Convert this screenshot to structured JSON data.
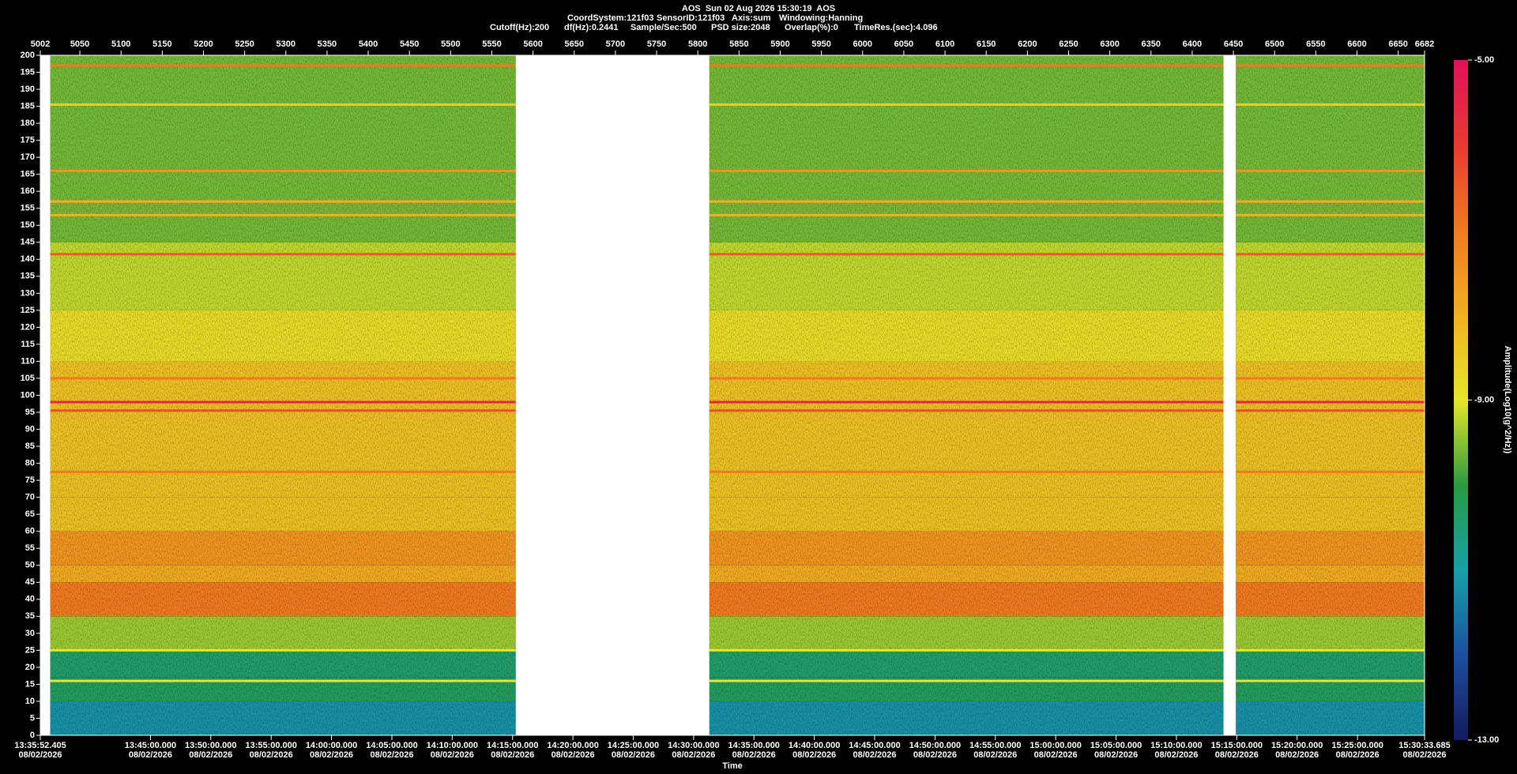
{
  "chart_data": {
    "type": "spectrogram",
    "title": "AOS  Sun 02 Aug 2026 15:30:19  AOS",
    "info_lines": [
      [
        "CoordSystem:121f03",
        "SensorID:121f03",
        "Axis:sum",
        "Windowing:Hanning"
      ],
      [
        "Cutoff(Hz):200",
        "df(Hz):0.2441",
        "Sample/Sec:500",
        "PSD size:2048",
        "Overlap(%):0",
        "TimeRes.(sec):4.096"
      ]
    ],
    "xlim": [
      5002,
      6682
    ],
    "xticks": [
      5002,
      5050,
      5100,
      5150,
      5200,
      5250,
      5300,
      5350,
      5400,
      5450,
      5500,
      5550,
      5600,
      5650,
      5700,
      5750,
      5800,
      5850,
      5900,
      5950,
      6000,
      6050,
      6100,
      6150,
      6200,
      6250,
      6300,
      6350,
      6400,
      6450,
      6500,
      6550,
      6600,
      6650,
      6682
    ],
    "x2label": "Time",
    "x2tick_date": "08/02/2026",
    "x2ticks": [
      {
        "value": 5002,
        "label": "13:35:52.405"
      },
      {
        "value": 5135.7,
        "label": "13:45:00.000"
      },
      {
        "value": 5208.9,
        "label": "13:50:00.000"
      },
      {
        "value": 5282.2,
        "label": "13:55:00.000"
      },
      {
        "value": 5355.4,
        "label": "14:00:00.000"
      },
      {
        "value": 5428.7,
        "label": "14:05:00.000"
      },
      {
        "value": 5501.9,
        "label": "14:10:00.000"
      },
      {
        "value": 5575.2,
        "label": "14:15:00.000"
      },
      {
        "value": 5648.4,
        "label": "14:20:00.000"
      },
      {
        "value": 5721.6,
        "label": "14:25:00.000"
      },
      {
        "value": 5794.9,
        "label": "14:30:00.000"
      },
      {
        "value": 5868.1,
        "label": "14:35:00.000"
      },
      {
        "value": 5941.4,
        "label": "14:40:00.000"
      },
      {
        "value": 6014.6,
        "label": "14:45:00.000"
      },
      {
        "value": 6087.9,
        "label": "14:50:00.000"
      },
      {
        "value": 6161.1,
        "label": "14:55:00.000"
      },
      {
        "value": 6234.3,
        "label": "15:00:00.000"
      },
      {
        "value": 6307.6,
        "label": "15:05:00.000"
      },
      {
        "value": 6380.8,
        "label": "15:10:00.000"
      },
      {
        "value": 6454.1,
        "label": "15:15:00.000"
      },
      {
        "value": 6527.3,
        "label": "15:20:00.000"
      },
      {
        "value": 6600.6,
        "label": "15:25:00.000"
      },
      {
        "value": 6682,
        "label": "15:30:33.685"
      }
    ],
    "ylim": [
      0,
      200
    ],
    "yticks": [
      0,
      5,
      10,
      15,
      20,
      25,
      30,
      35,
      40,
      45,
      50,
      55,
      60,
      65,
      70,
      75,
      80,
      85,
      90,
      95,
      100,
      105,
      110,
      115,
      120,
      125,
      130,
      135,
      140,
      145,
      150,
      155,
      160,
      165,
      170,
      175,
      180,
      185,
      190,
      195,
      200
    ],
    "band_edges": [
      0,
      10,
      17,
      25,
      35,
      45,
      50,
      60,
      70,
      110,
      125,
      145,
      200
    ],
    "band_levels": [
      -11.2,
      -10.3,
      -10.4,
      -9.4,
      -7.0,
      -7.9,
      -7.5,
      -8.3,
      -8.3,
      -8.8,
      -9.2,
      -9.6
    ],
    "tone_freqs": [
      16,
      25,
      77.5,
      95.5,
      98,
      105,
      141.5,
      153,
      157,
      166,
      185.5,
      197
    ],
    "tone_levels": [
      -9.0,
      -9.0,
      -7.0,
      -6.3,
      -5.5,
      -7.0,
      -6.5,
      -8.0,
      -8.0,
      -7.5,
      -8.5,
      -7.0
    ],
    "no_data": [
      [
        5002,
        5014
      ],
      [
        5579,
        5814
      ],
      [
        6438,
        6453
      ]
    ],
    "clabel": "Amplitude(Log10(g^2/Hz))",
    "clim": [
      -13,
      -5
    ],
    "cticks": [
      {
        "value": -5,
        "label": "-5.00"
      },
      {
        "value": -9,
        "label": "-9.00"
      },
      {
        "value": -13,
        "label": "-13.00"
      }
    ],
    "colorscale": [
      "#151a5e",
      "#1b4fa0",
      "#17a0a8",
      "#2a9a40",
      "#e6e62a",
      "#f0b020",
      "#f07a20",
      "#e83a30",
      "#e0105a"
    ]
  }
}
